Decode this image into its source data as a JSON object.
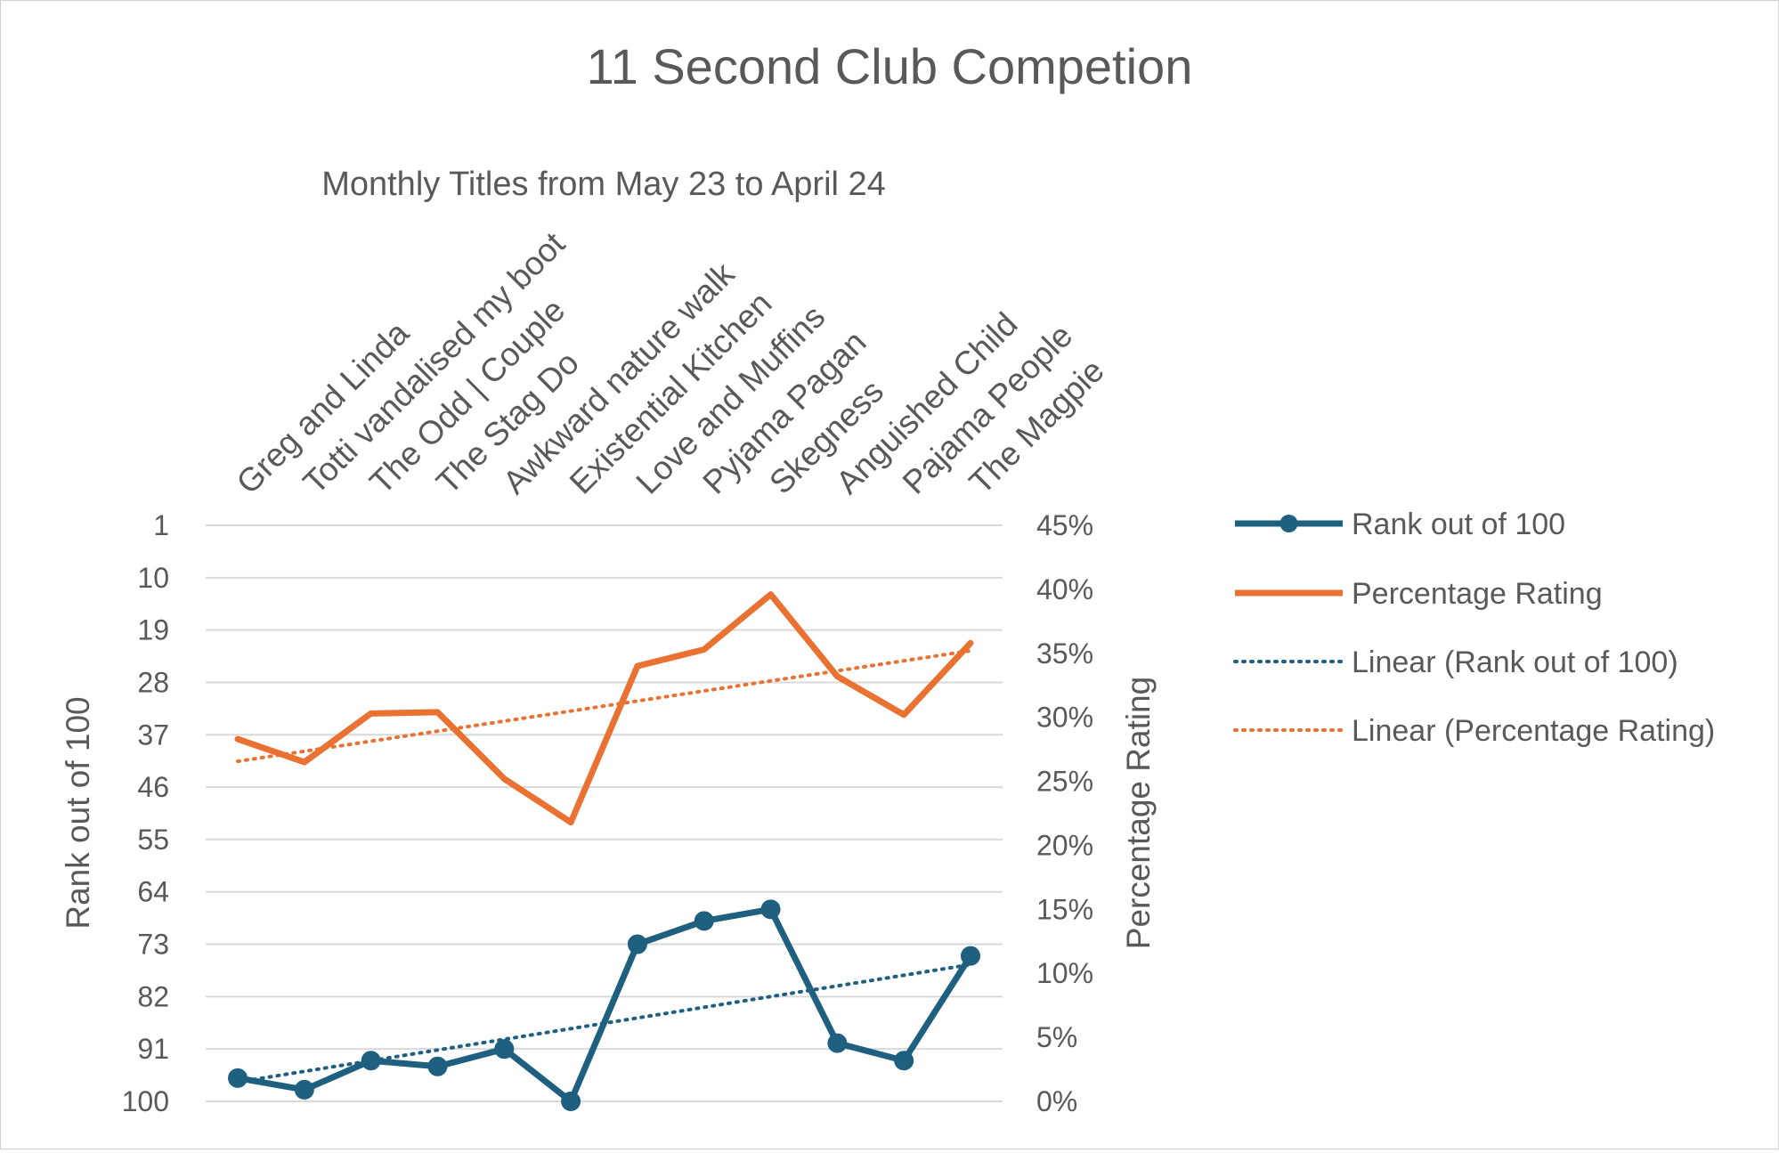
{
  "chart_data": {
    "type": "line",
    "title": "11 Second Club Competion",
    "subtitle": "Monthly Titles from May 23 to April 24",
    "categories": [
      "Greg and Linda",
      "Totti vandalised my boot",
      "The Odd | Couple",
      "The Stag Do",
      "Awkward nature walk",
      "Existential Kitchen",
      "Love and Muffins",
      "Pyjama Pagan",
      "Skegness",
      "Anguished Child",
      "Pajama People",
      "The Magpie"
    ],
    "y_left": {
      "label": "Rank out of 100",
      "reversed": true,
      "range": [
        1,
        100
      ],
      "ticks": [
        "1",
        "10",
        "19",
        "28",
        "37",
        "46",
        "55",
        "64",
        "73",
        "82",
        "91",
        "100"
      ]
    },
    "y_right": {
      "label": "Percentage Rating",
      "range": [
        0,
        45
      ],
      "ticks": [
        "0%",
        "5%",
        "10%",
        "15%",
        "20%",
        "25%",
        "30%",
        "35%",
        "40%",
        "45%"
      ]
    },
    "series": [
      {
        "name": "Rank out of 100",
        "axis": "left",
        "color": "#1f5f7f",
        "markers": true,
        "values": [
          96,
          98,
          93,
          94,
          91,
          100,
          73,
          69,
          67,
          90,
          93,
          75
        ]
      },
      {
        "name": "Percentage Rating",
        "axis": "right",
        "color": "#e97132",
        "markers": false,
        "values": [
          28.3,
          26.5,
          30.3,
          30.4,
          25.2,
          21.8,
          34.0,
          35.3,
          39.6,
          33.2,
          30.2,
          35.8
        ]
      },
      {
        "name": "Linear (Rank out of 100)",
        "axis": "left",
        "color": "#1f5f7f",
        "dotted": true,
        "trendline_of": "Rank out of 100"
      },
      {
        "name": "Linear (Percentage Rating)",
        "axis": "right",
        "color": "#e97132",
        "dotted": true,
        "trendline_of": "Percentage Rating"
      }
    ],
    "grid": true,
    "legend_position": "right"
  }
}
